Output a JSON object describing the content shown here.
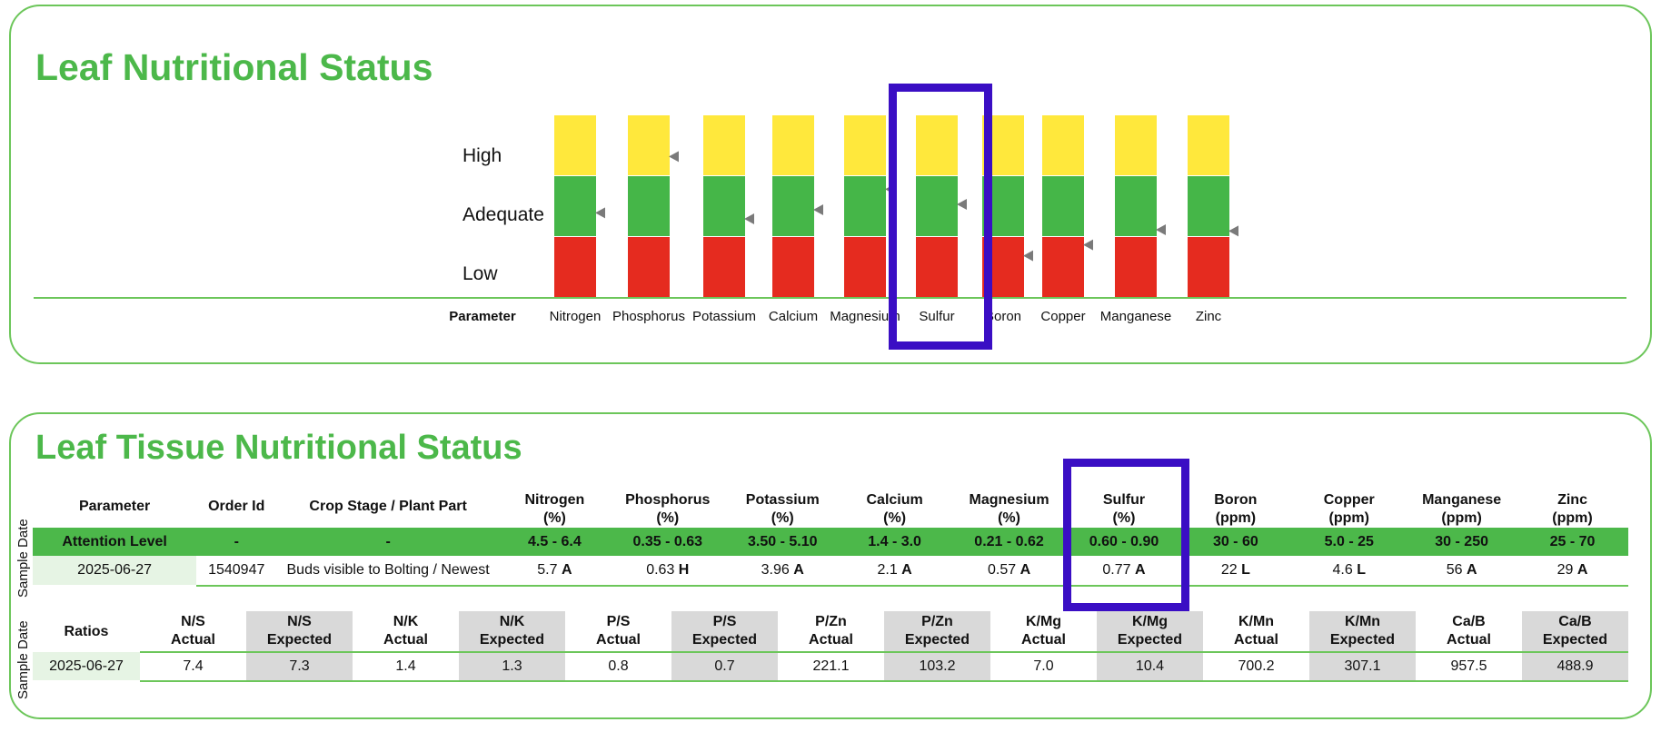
{
  "chart_data": {
    "type": "bar",
    "title": "Leaf Nutritional Status",
    "levels": [
      "Low",
      "Adequate",
      "High"
    ],
    "level_colors": {
      "Low": "#e52b1f",
      "Adequate": "#45b648",
      "High": "#ffe83c"
    },
    "categories": [
      "Nitrogen",
      "Phosphorus",
      "Potassium",
      "Calcium",
      "Magnesium",
      "Sulfur",
      "Boron",
      "Copper",
      "Manganese",
      "Zinc"
    ],
    "xlabel": "Parameter",
    "marker_positions": [
      1.39,
      2.32,
      1.29,
      1.44,
      1.78,
      1.53,
      0.68,
      0.86,
      1.11,
      1.09
    ],
    "marker_scale": "0-3 (0-1 Low, 1-2 Adequate, 2-3 High)",
    "highlighted_category": "Sulfur"
  },
  "table": {
    "title": "Leaf Tissue Nutritional Status",
    "side_label": "Sample Date",
    "headers": [
      {
        "line1": "Parameter",
        "line2": ""
      },
      {
        "line1": "Order Id",
        "line2": ""
      },
      {
        "line1": "Crop Stage / Plant Part",
        "line2": ""
      },
      {
        "line1": "Nitrogen",
        "line2": "(%)"
      },
      {
        "line1": "Phosphorus",
        "line2": "(%)"
      },
      {
        "line1": "Potassium",
        "line2": "(%)"
      },
      {
        "line1": "Calcium",
        "line2": "(%)"
      },
      {
        "line1": "Magnesium",
        "line2": "(%)"
      },
      {
        "line1": "Sulfur",
        "line2": "(%)"
      },
      {
        "line1": "Boron",
        "line2": "(ppm)"
      },
      {
        "line1": "Copper",
        "line2": "(ppm)"
      },
      {
        "line1": "Manganese",
        "line2": "(ppm)"
      },
      {
        "line1": "Zinc",
        "line2": "(ppm)"
      }
    ],
    "attention_row": [
      "Attention Level",
      "-",
      "-",
      "4.5 - 6.4",
      "0.35 - 0.63",
      "3.50 - 5.10",
      "1.4 - 3.0",
      "0.21 - 0.62",
      "0.60 - 0.90",
      "30 - 60",
      "5.0 - 25",
      "30 - 250",
      "25 - 70"
    ],
    "sample": {
      "date": "2025-06-27",
      "order_id": "1540947",
      "crop_stage": "Buds visible to Bolting / Newest",
      "values": [
        {
          "value": "5.7",
          "flag": "A"
        },
        {
          "value": "0.63",
          "flag": "H"
        },
        {
          "value": "3.96",
          "flag": "A"
        },
        {
          "value": "2.1",
          "flag": "A"
        },
        {
          "value": "0.57",
          "flag": "A"
        },
        {
          "value": "0.77",
          "flag": "A"
        },
        {
          "value": "22",
          "flag": "L"
        },
        {
          "value": "4.6",
          "flag": "L"
        },
        {
          "value": "56",
          "flag": "A"
        },
        {
          "value": "29",
          "flag": "A"
        }
      ]
    }
  },
  "ratios": {
    "side_label": "Sample Date",
    "label": "Ratios",
    "headers": [
      {
        "line1": "N/S",
        "line2": "Actual"
      },
      {
        "line1": "N/S",
        "line2": "Expected"
      },
      {
        "line1": "N/K",
        "line2": "Actual"
      },
      {
        "line1": "N/K",
        "line2": "Expected"
      },
      {
        "line1": "P/S",
        "line2": "Actual"
      },
      {
        "line1": "P/S",
        "line2": "Expected"
      },
      {
        "line1": "P/Zn",
        "line2": "Actual"
      },
      {
        "line1": "P/Zn",
        "line2": "Expected"
      },
      {
        "line1": "K/Mg",
        "line2": "Actual"
      },
      {
        "line1": "K/Mg",
        "line2": "Expected"
      },
      {
        "line1": "K/Mn",
        "line2": "Actual"
      },
      {
        "line1": "K/Mn",
        "line2": "Expected"
      },
      {
        "line1": "Ca/B",
        "line2": "Actual"
      },
      {
        "line1": "Ca/B",
        "line2": "Expected"
      }
    ],
    "row": {
      "date": "2025-06-27",
      "values": [
        "7.4",
        "7.3",
        "1.4",
        "1.3",
        "0.8",
        "0.7",
        "221.1",
        "103.2",
        "7.0",
        "10.4",
        "700.2",
        "307.1",
        "957.5",
        "488.9"
      ]
    }
  }
}
